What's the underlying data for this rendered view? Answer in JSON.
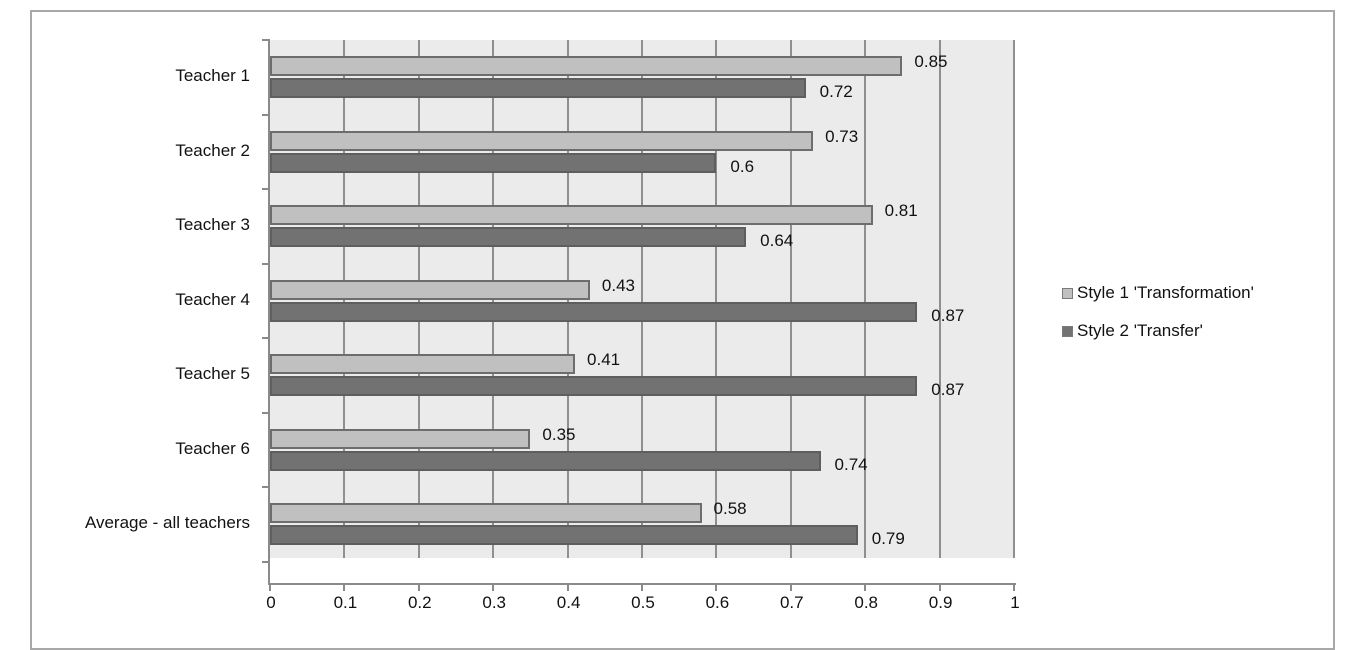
{
  "chart_data": {
    "type": "bar",
    "orientation": "horizontal",
    "title": "",
    "xlabel": "",
    "ylabel": "",
    "xlim": [
      0,
      1
    ],
    "x_ticks": [
      "0",
      "0.1",
      "0.2",
      "0.3",
      "0.4",
      "0.5",
      "0.6",
      "0.7",
      "0.8",
      "0.9",
      "1"
    ],
    "grid": true,
    "legend_position": "right",
    "categories": [
      "Teacher 1",
      "Teacher 2",
      "Teacher 3",
      "Teacher 4",
      "Teacher 5",
      "Teacher 6",
      "Average - all teachers"
    ],
    "series": [
      {
        "name": "Style 1 'Transformation'",
        "color": "#c0c0c0",
        "values": [
          0.85,
          0.73,
          0.81,
          0.43,
          0.41,
          0.35,
          0.58
        ],
        "labels": [
          "0.85",
          "0.73",
          "0.81",
          "0.43",
          "0.41",
          "0.35",
          "0.58"
        ]
      },
      {
        "name": "Style 2 'Transfer'",
        "color": "#727272",
        "values": [
          0.72,
          0.6,
          0.64,
          0.87,
          0.87,
          0.74,
          0.79
        ],
        "labels": [
          "0.72",
          "0.6",
          "0.64",
          "0.87",
          "0.87",
          "0.74",
          "0.79"
        ]
      }
    ]
  },
  "legend": {
    "items": [
      {
        "label": "Style 1 'Transformation'",
        "color": "#c0c0c0"
      },
      {
        "label": "Style 2 'Transfer'",
        "color": "#727272"
      }
    ]
  },
  "colors": {
    "plot_background": "#ebebeb",
    "gridline": "#8f8f8f",
    "frame_border": "#a8a8a8"
  }
}
